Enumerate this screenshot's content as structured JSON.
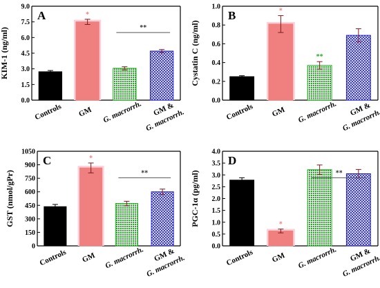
{
  "chart_data": [
    {
      "type": "bar",
      "panel_label": "A",
      "ylabel": "KIM-1 (ng/ml)",
      "ylim": [
        0,
        9
      ],
      "yticks": [
        "0.0",
        "1.5",
        "3.0",
        "4.5",
        "6.0",
        "7.5",
        "9.0"
      ],
      "categories": [
        "Controls",
        "GM",
        "G. macrorrh.",
        "GM & G. macrorrh."
      ],
      "values": [
        2.72,
        7.5,
        3.05,
        4.7
      ],
      "errors": [
        0.12,
        0.25,
        0.15,
        0.15
      ],
      "bar_significance": [
        "",
        "*",
        "",
        ""
      ],
      "bracket": {
        "from": 2,
        "to": 3,
        "label": "**"
      }
    },
    {
      "type": "bar",
      "panel_label": "B",
      "ylabel": "Cystatin C (ng/ml)",
      "ylim": [
        0,
        1.0
      ],
      "yticks": [
        "0.0",
        "0.2",
        "0.4",
        "0.6",
        "0.8",
        "1.0"
      ],
      "categories": [
        "Controls",
        "GM",
        "G. macrorrh.",
        "GM & G. macrorrh."
      ],
      "values": [
        0.25,
        0.81,
        0.37,
        0.69
      ],
      "errors": [
        0.01,
        0.09,
        0.04,
        0.07
      ],
      "bar_significance": [
        "",
        "*",
        "**",
        ""
      ],
      "bracket": null
    },
    {
      "type": "bar",
      "panel_label": "C",
      "ylabel": "GST (nmol/gPr)",
      "ylim": [
        0,
        1050
      ],
      "yticks": [
        "0",
        "150",
        "300",
        "450",
        "600",
        "750",
        "900",
        "1050"
      ],
      "categories": [
        "Controls",
        "GM",
        "G. macrorrh.",
        "GM & G. macrorrh."
      ],
      "values": [
        435,
        865,
        470,
        600
      ],
      "errors": [
        25,
        55,
        25,
        30
      ],
      "bar_significance": [
        "",
        "*",
        "",
        ""
      ],
      "bracket": {
        "from": 2,
        "to": 3,
        "label": "**"
      }
    },
    {
      "type": "bar",
      "panel_label": "D",
      "ylabel": "PGC-1α (pg/ml)",
      "ylim": [
        0,
        4.0
      ],
      "yticks": [
        "0.0",
        "0.5",
        "1.0",
        "1.5",
        "2.0",
        "2.5",
        "3.0",
        "3.5",
        "4.0"
      ],
      "categories": [
        "Controls",
        "GM",
        "G. macrorrh.",
        "GM & G. macrorrh."
      ],
      "values": [
        2.78,
        0.63,
        3.22,
        3.05
      ],
      "errors": [
        0.1,
        0.08,
        0.2,
        0.18
      ],
      "bar_significance": [
        "",
        "*",
        "",
        ""
      ],
      "bracket": {
        "from": 2,
        "to": 3,
        "label": "**"
      }
    }
  ],
  "colors": {
    "controls": "#000000",
    "gm_fill": "#f08080",
    "gm_halo": "#ffd0d8",
    "gm_marker": "#f08080",
    "green": "#22aa22",
    "blue": "#2020cc",
    "axis": "#000000",
    "bracket_label": "#333333"
  }
}
